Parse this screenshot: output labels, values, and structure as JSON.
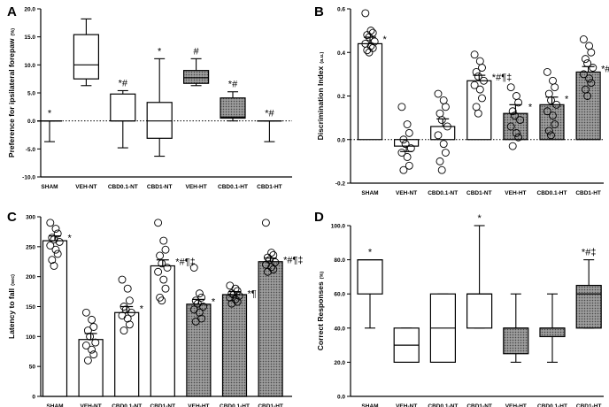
{
  "chart_data": [
    {
      "panel": "A",
      "type": "box",
      "ylabel": "Preference for ipsilateral forepaw",
      "yunit": "(%)",
      "ylim": [
        -10,
        20
      ],
      "yticks": [
        -10.0,
        -5.0,
        0.0,
        5.0,
        10.0,
        15.0,
        20.0
      ],
      "ytick_labels": [
        "-10.0",
        "-5.0",
        "0.0",
        "5.0",
        "10.0",
        "15.0",
        "20.0"
      ],
      "zero_line": "dotted",
      "categories": [
        "SHAM",
        "VEH-NT",
        "CBD0.1-NT",
        "CBD1-NT",
        "VEH-HT",
        "CBD0.1-HT",
        "CBD1-HT"
      ],
      "boxes": [
        {
          "min": -3.7,
          "q1": 0.0,
          "median": 0.0,
          "q3": 0.0,
          "max": 0.0,
          "fill": "white",
          "annotation": "*"
        },
        {
          "min": 6.3,
          "q1": 7.5,
          "median": 10.0,
          "q3": 15.4,
          "max": 18.2,
          "fill": "white",
          "annotation": ""
        },
        {
          "min": -4.8,
          "q1": 0.0,
          "median": 0.0,
          "q3": 4.8,
          "max": 5.4,
          "fill": "white",
          "annotation": "*#"
        },
        {
          "min": -6.3,
          "q1": -3.1,
          "median": 0.0,
          "q3": 3.3,
          "max": 11.1,
          "fill": "white",
          "annotation": "*"
        },
        {
          "min": 6.3,
          "q1": 6.7,
          "median": 7.7,
          "q3": 9.0,
          "max": 11.1,
          "fill": "dotted",
          "annotation": "#"
        },
        {
          "min": 0.0,
          "q1": 0.5,
          "median": 0.7,
          "q3": 4.1,
          "max": 5.2,
          "fill": "dotted",
          "annotation": "*#"
        },
        {
          "min": -3.7,
          "q1": 0.0,
          "median": 0.0,
          "q3": 0.0,
          "max": 0.0,
          "fill": "dotted",
          "annotation": "*#"
        }
      ]
    },
    {
      "panel": "B",
      "type": "bar",
      "ylabel": "Discrimination Index",
      "yunit": "(a.u.)",
      "ylim": [
        -0.2,
        0.6
      ],
      "yticks": [
        -0.2,
        0.0,
        0.2,
        0.4,
        0.6
      ],
      "ytick_labels": [
        "-0.2",
        "0.0",
        "0.2",
        "0.4",
        "0.6"
      ],
      "zero_line": "dotted",
      "categories": [
        "SHAM",
        "VEH-NT",
        "CBD0.1-NT",
        "CBD1-NT",
        "VEH-HT",
        "CBD0.1-HT",
        "CBD1-HT"
      ],
      "values": [
        0.44,
        -0.03,
        0.06,
        0.27,
        0.12,
        0.16,
        0.31
      ],
      "errors": [
        0.03,
        0.025,
        0.035,
        0.025,
        0.04,
        0.035,
        0.025
      ],
      "fills": [
        "white",
        "white",
        "white",
        "white",
        "dotted",
        "dotted",
        "dotted"
      ],
      "annotations": [
        "*",
        "",
        "",
        "*#¶‡",
        "*",
        "*",
        "*#¶‡"
      ],
      "points": [
        [
          0.58,
          0.5,
          0.49,
          0.48,
          0.47,
          0.45,
          0.44,
          0.43,
          0.42,
          0.41,
          0.4
        ],
        [
          0.15,
          0.07,
          0.03,
          0.0,
          -0.02,
          -0.04,
          -0.06,
          -0.08,
          -0.12,
          -0.14
        ],
        [
          0.21,
          0.18,
          0.15,
          0.12,
          0.09,
          0.06,
          0.02,
          -0.02,
          -0.06,
          -0.1,
          -0.14
        ],
        [
          0.39,
          0.36,
          0.33,
          0.31,
          0.29,
          0.27,
          0.25,
          0.23,
          0.19,
          0.15,
          0.12
        ],
        [
          0.24,
          0.2,
          0.17,
          0.13,
          0.11,
          0.09,
          0.06,
          0.03,
          0.01,
          -0.03
        ],
        [
          0.31,
          0.27,
          0.24,
          0.21,
          0.18,
          0.16,
          0.13,
          0.11,
          0.07,
          0.04,
          0.02
        ],
        [
          0.46,
          0.43,
          0.4,
          0.37,
          0.35,
          0.33,
          0.3,
          0.28,
          0.26,
          0.23,
          0.2
        ]
      ]
    },
    {
      "panel": "C",
      "type": "bar",
      "ylabel": "Latency to fall",
      "yunit": "(sec)",
      "ylim": [
        0,
        300
      ],
      "yticks": [
        0,
        50,
        100,
        150,
        200,
        250,
        300
      ],
      "ytick_labels": [
        "0",
        "50",
        "100",
        "150",
        "200",
        "250",
        "300"
      ],
      "zero_line": "none",
      "categories": [
        "SHAM",
        "VEH-NT",
        "CBD0.1-NT",
        "CBD1-NT",
        "VEH-HT",
        "CBD0.1-HT",
        "CBD1-HT"
      ],
      "values": [
        260,
        95,
        140,
        218,
        154,
        170,
        225
      ],
      "errors": [
        8,
        10,
        10,
        10,
        8,
        5,
        6
      ],
      "fills": [
        "white",
        "white",
        "white",
        "white",
        "dotted",
        "dotted",
        "dotted"
      ],
      "annotations": [
        "*",
        "",
        "*",
        "*#¶‡",
        "*",
        "*¶",
        "*#¶‡"
      ],
      "points": [
        [
          290,
          280,
          272,
          265,
          262,
          258,
          252,
          245,
          238,
          228,
          218
        ],
        [
          140,
          128,
          116,
          110,
          100,
          90,
          85,
          78,
          70,
          60
        ],
        [
          195,
          180,
          160,
          150,
          145,
          140,
          135,
          130,
          120,
          110
        ],
        [
          290,
          260,
          245,
          235,
          222,
          215,
          208,
          195,
          180,
          165,
          160
        ],
        [
          215,
          172,
          165,
          160,
          155,
          150,
          145,
          140,
          130,
          125
        ],
        [
          185,
          180,
          176,
          172,
          170,
          168,
          165,
          162,
          158,
          155
        ],
        [
          290,
          240,
          236,
          232,
          228,
          224,
          220,
          216,
          212,
          208
        ]
      ]
    },
    {
      "panel": "D",
      "type": "box",
      "ylabel": "Correct Responses",
      "yunit": "(%)",
      "ylim": [
        0,
        100
      ],
      "yticks": [
        0.0,
        20.0,
        40.0,
        60.0,
        80.0,
        100.0
      ],
      "ytick_labels": [
        "0.0",
        "20.0",
        "40.0",
        "60.0",
        "80.0",
        "100.0"
      ],
      "zero_line": "none",
      "categories": [
        "SHAM",
        "VEH-NT",
        "CBD0.1-NT",
        "CBD1-NT",
        "VEH-HT",
        "CBD0.1-HT",
        "CBD1-HT"
      ],
      "boxes": [
        {
          "min": 40,
          "q1": 60,
          "median": 80,
          "q3": 80,
          "max": 80,
          "fill": "white",
          "annotation": "*"
        },
        {
          "min": 20,
          "q1": 20,
          "median": 30,
          "q3": 40,
          "max": 40,
          "fill": "white",
          "annotation": ""
        },
        {
          "min": 20,
          "q1": 20,
          "median": 40,
          "q3": 60,
          "max": 60,
          "fill": "white",
          "annotation": ""
        },
        {
          "min": 40,
          "q1": 40,
          "median": 60,
          "q3": 60,
          "max": 100,
          "fill": "white",
          "annotation": "*"
        },
        {
          "min": 20,
          "q1": 25,
          "median": 40,
          "q3": 40,
          "max": 60,
          "fill": "dotted",
          "annotation": ""
        },
        {
          "min": 20,
          "q1": 35,
          "median": 40,
          "q3": 40,
          "max": 60,
          "fill": "dotted",
          "annotation": ""
        },
        {
          "min": 40,
          "q1": 40,
          "median": 60,
          "q3": 65,
          "max": 80,
          "fill": "dotted",
          "annotation": "*#‡"
        }
      ]
    }
  ],
  "colors": {
    "ink": "#000000",
    "paper": "#ffffff",
    "fill_dark": "#6b6b6b",
    "fill_light": "#c8c8c8"
  }
}
